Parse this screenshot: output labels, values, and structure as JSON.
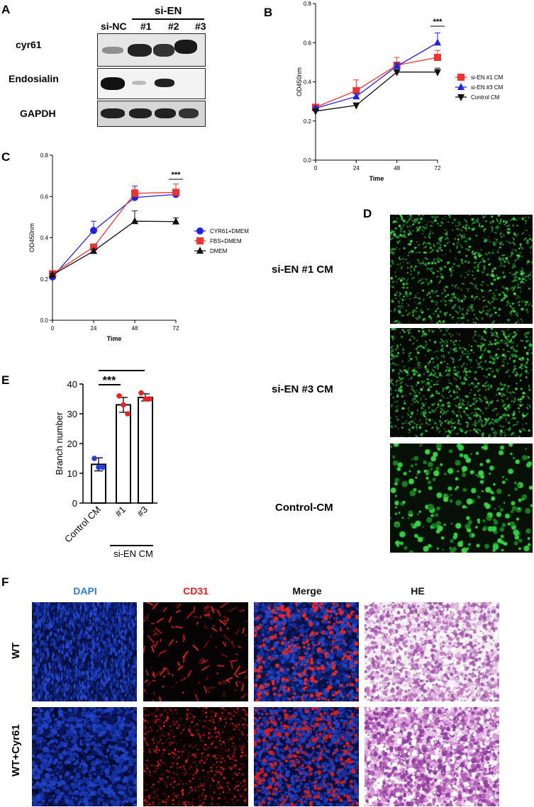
{
  "panels": {
    "A": "A",
    "B": "B",
    "C": "C",
    "D": "D",
    "E": "E",
    "F": "F"
  },
  "blot": {
    "group_header": "si-EN",
    "lanes": [
      "si-NC",
      "#1",
      "#2",
      "#3"
    ],
    "rows": [
      "cyr61",
      "Endosialin",
      "GAPDH"
    ]
  },
  "chart_data": [
    {
      "type": "line",
      "panel": "B",
      "xlabel": "Time",
      "ylabel": "OD450nm",
      "x": [
        0,
        24,
        48,
        72
      ],
      "xticks": [
        "0",
        "24",
        "48",
        "72"
      ],
      "ylim": [
        0.0,
        0.8
      ],
      "yticks": [
        "0.0",
        "0.2",
        "0.4",
        "0.6",
        "0.8"
      ],
      "series": [
        {
          "name": "si-EN #1 CM",
          "marker": "square",
          "color": "#ee3333",
          "values": [
            0.27,
            0.355,
            0.485,
            0.525
          ],
          "err": [
            0.01,
            0.055,
            0.04,
            0.035
          ]
        },
        {
          "name": "si-EN #3 CM",
          "marker": "triangle-up",
          "color": "#2222dd",
          "values": [
            0.265,
            0.325,
            0.48,
            0.6
          ],
          "err": [
            0.01,
            0.015,
            0.015,
            0.05
          ]
        },
        {
          "name": "Control CM",
          "marker": "triangle-down",
          "color": "#111111",
          "values": [
            0.25,
            0.28,
            0.45,
            0.45
          ],
          "err": [
            0.005,
            0.01,
            0.01,
            0.02
          ]
        }
      ],
      "significance": "***",
      "legend": "right"
    },
    {
      "type": "line",
      "panel": "C",
      "xlabel": "Time",
      "ylabel": "OD450nm",
      "x": [
        0,
        24,
        48,
        72
      ],
      "xticks": [
        "0",
        "24",
        "48",
        "72"
      ],
      "ylim": [
        0.0,
        0.8
      ],
      "yticks": [
        "0.0",
        "0.2",
        "0.4",
        "0.6",
        "0.8"
      ],
      "series": [
        {
          "name": "CYR61+DMEM",
          "marker": "circle",
          "color": "#2222dd",
          "values": [
            0.21,
            0.435,
            0.595,
            0.61
          ],
          "err": [
            0.01,
            0.045,
            0.055,
            0.015
          ]
        },
        {
          "name": "FBS+DMEM",
          "marker": "square",
          "color": "#ee3333",
          "values": [
            0.225,
            0.355,
            0.615,
            0.62
          ],
          "err": [
            0.01,
            0.01,
            0.02,
            0.04
          ]
        },
        {
          "name": "DMEM",
          "marker": "triangle-up",
          "color": "#111111",
          "values": [
            0.22,
            0.335,
            0.48,
            0.478
          ],
          "err": [
            0.005,
            0.01,
            0.05,
            0.018
          ]
        }
      ],
      "significance": "***",
      "legend": "right"
    },
    {
      "type": "bar",
      "panel": "E",
      "ylabel": "Branch number",
      "categories": [
        "Control CM",
        "#1",
        "#3"
      ],
      "group_label": "si-EN CM",
      "values": [
        13,
        33,
        35.5
      ],
      "err": [
        2.2,
        2.5,
        1.2
      ],
      "points": [
        [
          15,
          12,
          12
        ],
        [
          36,
          33,
          30
        ],
        [
          37,
          35,
          35
        ]
      ],
      "point_colors": [
        "#2244dd",
        "#ee2222",
        "#ee2222"
      ],
      "ylim": [
        0,
        40
      ],
      "yticks": [
        "0",
        "10",
        "20",
        "30",
        "40"
      ],
      "significance": [
        "***",
        "***"
      ]
    }
  ],
  "panel_d": {
    "rows": [
      "si-EN #1 CM",
      "si-EN #3 CM",
      "Control-CM"
    ]
  },
  "panel_f": {
    "columns": [
      {
        "label": "DAPI",
        "color": "#2a7fd0"
      },
      {
        "label": "CD31",
        "color": "#e02020"
      },
      {
        "label": "Merge",
        "color": "#111111"
      },
      {
        "label": "HE",
        "color": "#111111"
      }
    ],
    "rows": [
      "WT",
      "WT+Cyr61"
    ]
  }
}
